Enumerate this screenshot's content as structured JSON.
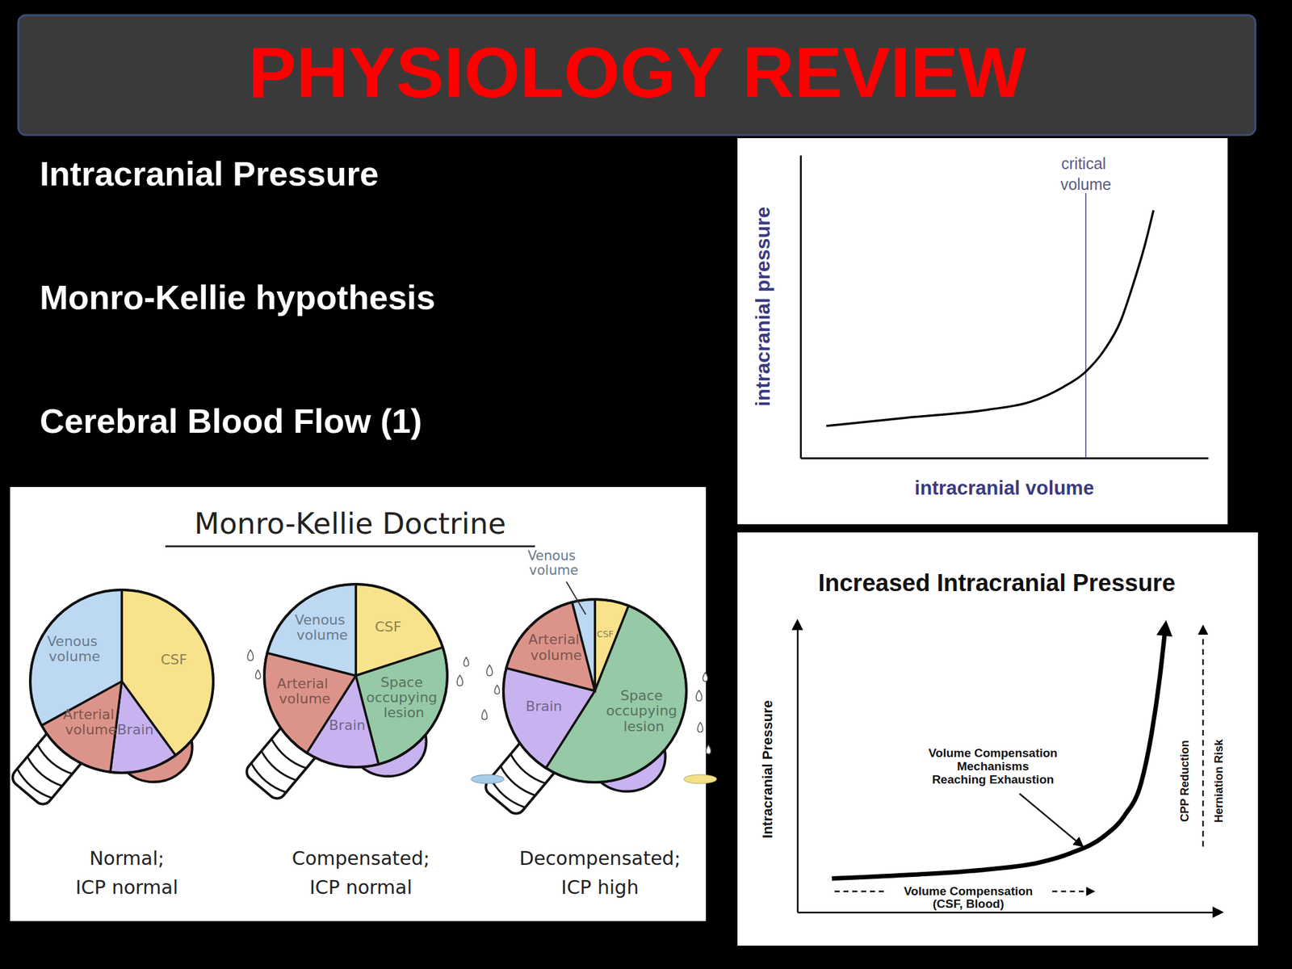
{
  "header": {
    "title": "PHYSIOLOGY REVIEW"
  },
  "bullets": [
    "Intracranial Pressure",
    "Monro-Kellie hypothesis",
    "Cerebral Blood Flow (1)"
  ],
  "doctrine": {
    "title": "Monro-Kellie Doctrine",
    "states": [
      {
        "caption": [
          "Normal;",
          "ICP normal"
        ],
        "segments": [
          {
            "label": "CSF",
            "value": 40,
            "color": "#f8e38c"
          },
          {
            "label": "Brain",
            "value": 12,
            "color": "#c9b2f0"
          },
          {
            "label": "Arterial volume",
            "value": 15,
            "color": "#dc948a"
          },
          {
            "label": "Venous volume",
            "value": 33,
            "color": "#bcd8f2"
          }
        ]
      },
      {
        "caption": [
          "Compensated;",
          "ICP normal"
        ],
        "segments": [
          {
            "label": "CSF",
            "value": 20,
            "color": "#f8e38c"
          },
          {
            "label": "Space occupying lesion",
            "value": 26,
            "color": "#96c9a6"
          },
          {
            "label": "Brain",
            "value": 13,
            "color": "#c9b2f0"
          },
          {
            "label": "Arterial volume",
            "value": 20,
            "color": "#dc948a"
          },
          {
            "label": "Venous volume",
            "value": 21,
            "color": "#bcd8f2"
          }
        ]
      },
      {
        "caption": [
          "Decompensated;",
          "ICP high"
        ],
        "segments": [
          {
            "label": "CSF",
            "value": 6,
            "color": "#f8e38c"
          },
          {
            "label": "Space occupying lesion",
            "value": 53,
            "color": "#96c9a6"
          },
          {
            "label": "Brain",
            "value": 20,
            "color": "#c9b2f0"
          },
          {
            "label": "Arterial volume",
            "value": 17,
            "color": "#dc948a"
          },
          {
            "label": "Venous volume",
            "value": 4,
            "color": "#bcd8f2"
          }
        ]
      }
    ]
  },
  "chart_data": [
    {
      "type": "line",
      "x_label": "intracranial volume",
      "y_label": "intracranial pressure",
      "xlim": [
        0,
        100
      ],
      "ylim": [
        0,
        100
      ],
      "tick_labels": false,
      "x": [
        6.3,
        25.9,
        46.2,
        56.3,
        64.4,
        69.8,
        74.5,
        78.5,
        81.6,
        84.6,
        86.6
      ],
      "series": [
        {
          "color": "#000000",
          "values": [
            10.6,
            13.3,
            16.0,
            18.5,
            23.4,
            28.3,
            35.6,
            45.1,
            57.3,
            70.9,
            81.8
          ]
        }
      ],
      "annotations": [
        {
          "text": "critical volume",
          "x": 70
        }
      ]
    },
    {
      "type": "line",
      "title": "Increased Intracranial Pressure",
      "y_label": "Intracranial Pressure",
      "x_label_lines": [
        "Volume Compensation",
        "(CSF, Blood)"
      ],
      "side_labels": [
        "CPP Reduction",
        "Herniation Risk"
      ],
      "xlim": [
        0,
        100
      ],
      "ylim": [
        0,
        100
      ],
      "tick_labels": false,
      "x": [
        8.2,
        25.9,
        45.5,
        57.3,
        65.1,
        72.9,
        77.8,
        81.8,
        84.3,
        86.3,
        87.6
      ],
      "series": [
        {
          "color": "#000000",
          "values": [
            11.8,
            13.0,
            15.0,
            17.3,
            20.7,
            26.5,
            33.7,
            45.2,
            62.5,
            82.7,
            100
          ]
        }
      ],
      "annotations": [
        {
          "text": [
            "Volume Compensation",
            "Mechanisms",
            "Reaching Exhaustion"
          ],
          "x": 68.6,
          "y": 22.2
        }
      ]
    }
  ]
}
